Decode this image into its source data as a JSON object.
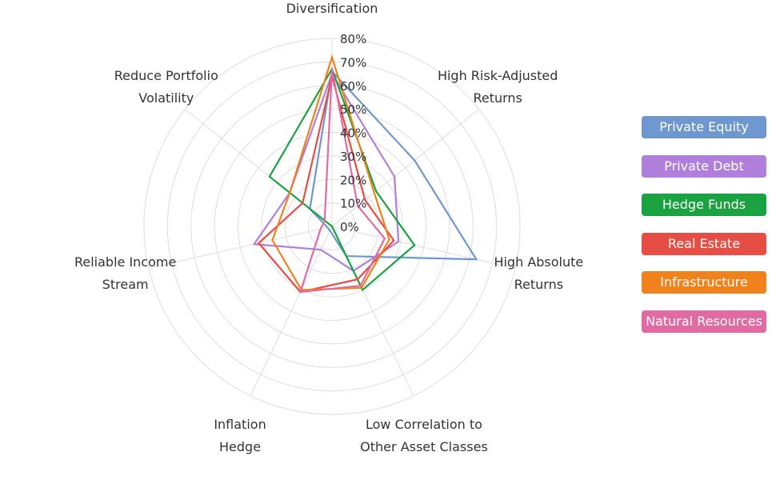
{
  "chart_data": {
    "type": "radar",
    "axes": [
      [
        "Diversification"
      ],
      [
        "High Risk-Adjusted",
        "Returns"
      ],
      [
        "High Absolute",
        "Returns"
      ],
      [
        "Low Correlation to",
        "Other Asset Classes"
      ],
      [
        "Inflation",
        "Hedge"
      ],
      [
        "Reliable Income",
        "Stream"
      ],
      [
        "Reduce Portfolio",
        "Volatility"
      ]
    ],
    "ticks": [
      "0%",
      "10%",
      "20%",
      "30%",
      "40%",
      "50%",
      "60%",
      "70%",
      "80%"
    ],
    "rlim": [
      0,
      80
    ],
    "grid": true,
    "legend_position": "right",
    "series": [
      {
        "name": "Private Equity",
        "color": "#6e97cf",
        "values": [
          66,
          45,
          63,
          14,
          2,
          2,
          12
        ]
      },
      {
        "name": "Private Debt",
        "color": "#b07fdb",
        "values": [
          65,
          34,
          29,
          21,
          11,
          34,
          23
        ]
      },
      {
        "name": "Hedge Funds",
        "color": "#1aa241",
        "values": [
          67,
          24,
          36,
          30,
          0,
          0,
          34
        ]
      },
      {
        "name": "Real Estate",
        "color": "#e54d45",
        "values": [
          64,
          18,
          27,
          25,
          31,
          32,
          16
        ]
      },
      {
        "name": "Infrastructure",
        "color": "#f0821c",
        "values": [
          72,
          23,
          25,
          29,
          30,
          26,
          23
        ]
      },
      {
        "name": "Natural Resources",
        "color": "#e06aa2",
        "values": [
          67,
          14,
          23,
          28,
          31,
          5,
          4
        ]
      }
    ]
  }
}
